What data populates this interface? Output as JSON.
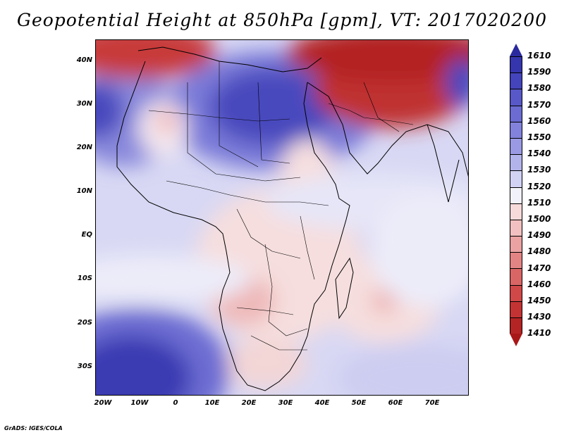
{
  "title": "Geopotential Height at 850hPa [gpm], VT: 2017020200",
  "credit": "GrADS: IGES/COLA",
  "map": {
    "region": "Africa and surrounding oceans",
    "variable": "Geopotential height at 850 hPa",
    "lat_ticks": [
      "40N",
      "30N",
      "20N",
      "10N",
      "EQ",
      "10S",
      "20S",
      "30S"
    ],
    "lon_ticks": [
      "20W",
      "10W",
      "0",
      "10E",
      "20E",
      "30E",
      "40E",
      "50E",
      "60E",
      "70E"
    ],
    "lat_range": [
      -37,
      45
    ],
    "lon_range": [
      -22,
      80
    ]
  },
  "colorbar": {
    "levels": [
      "1610",
      "1590",
      "1580",
      "1570",
      "1560",
      "1550",
      "1540",
      "1530",
      "1520",
      "1510",
      "1500",
      "1490",
      "1480",
      "1470",
      "1460",
      "1450",
      "1430",
      "1410"
    ],
    "colors": [
      "#2a2a9e",
      "#3535ae",
      "#4444bc",
      "#5858c8",
      "#6b6bd2",
      "#8282dc",
      "#9999e4",
      "#b3b3ec",
      "#d2d2f4",
      "#f2f2fa",
      "#f7dada",
      "#f2c0c0",
      "#eaa2a2",
      "#e38484",
      "#da6565",
      "#d04848",
      "#c43333",
      "#b52424",
      "#a81818"
    ]
  }
}
